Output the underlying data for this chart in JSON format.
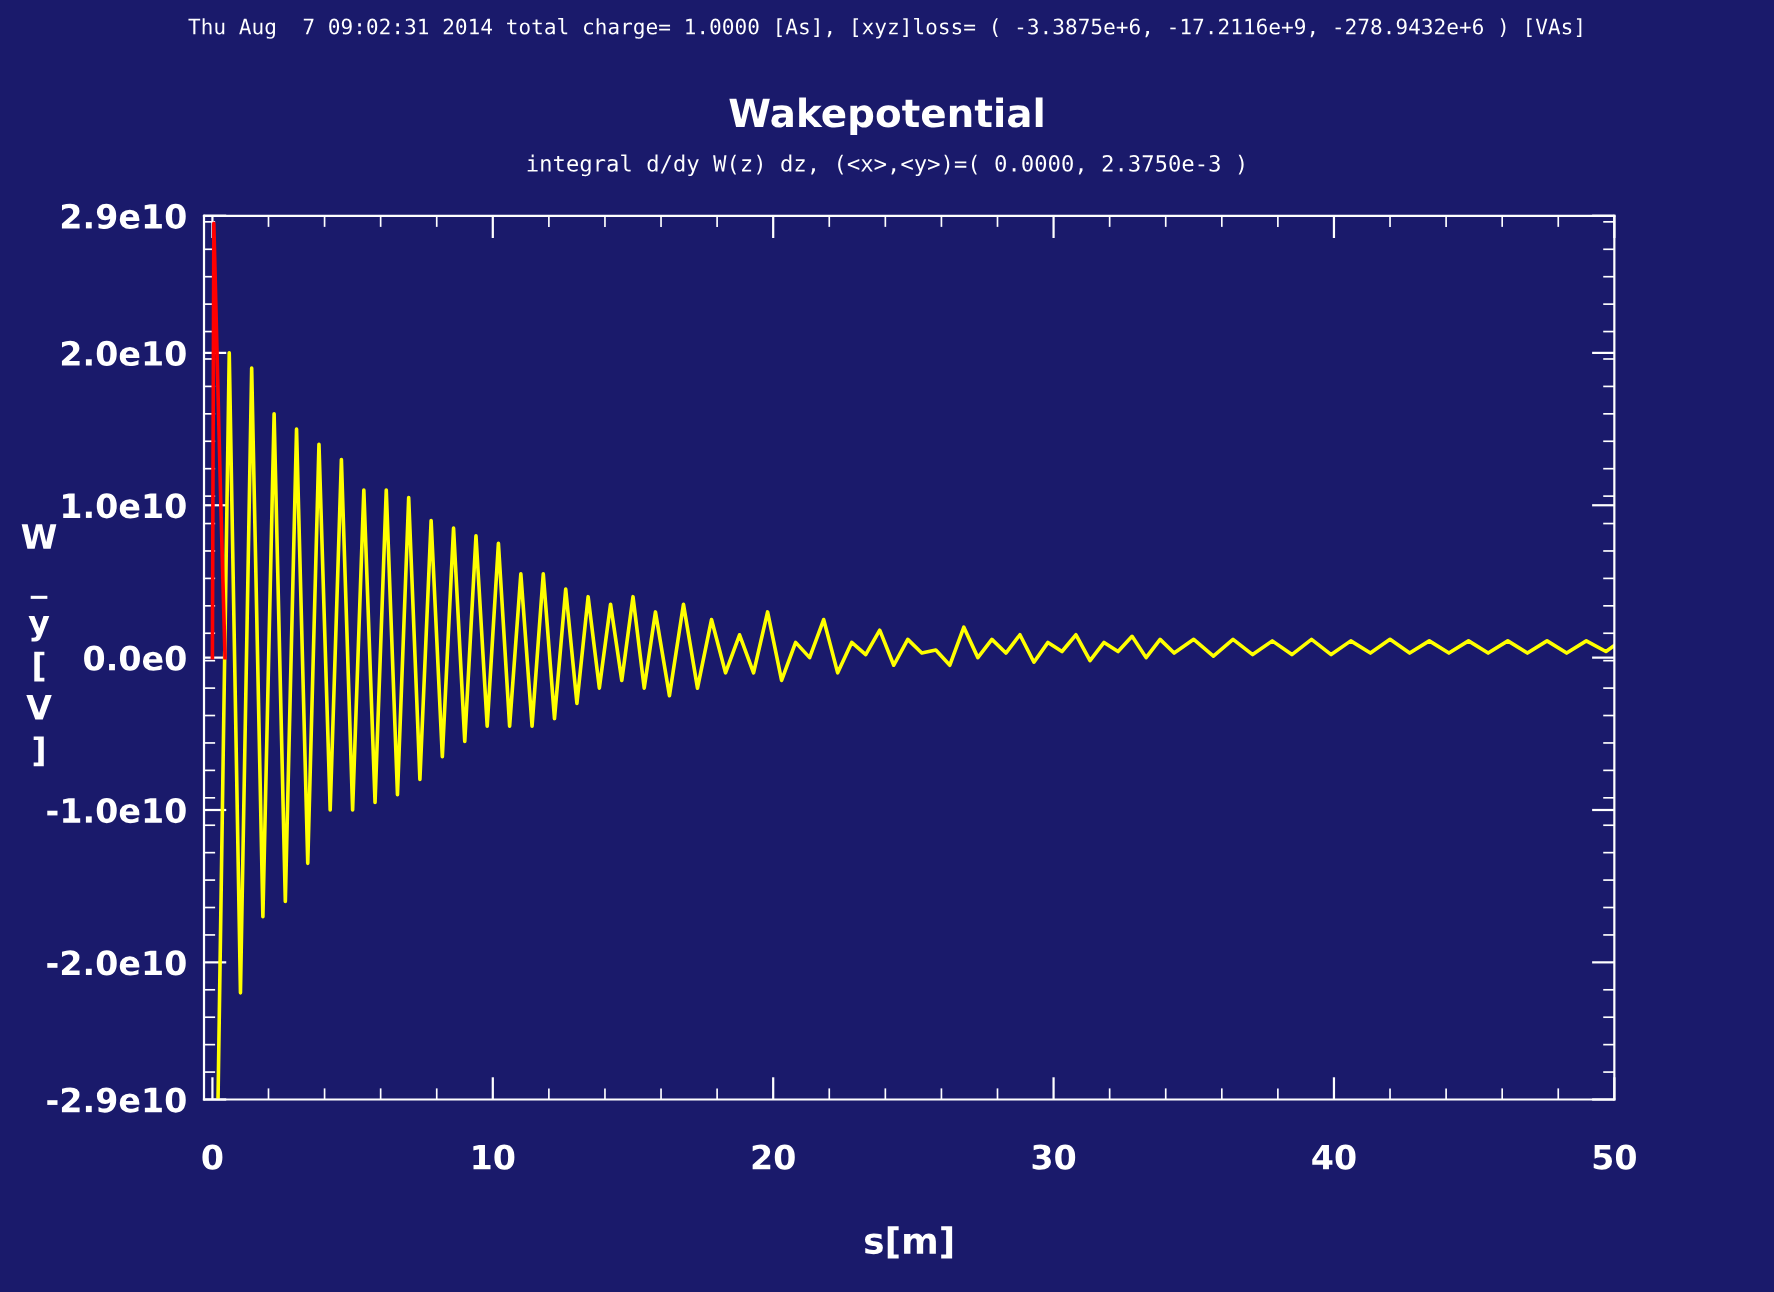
{
  "chart_data": {
    "type": "line",
    "title": "Wakepotential",
    "subtitle": "integral d/dy W(z) dz, (<x>,<y>)=( 0.0000, 2.3750e-3 )",
    "xlabel": "s[m]",
    "ylabel": "W_y[V]",
    "annotations": [
      "Thu Aug  7 09:02:31 2014 total charge= 1.0000 [As], [xyz]loss= ( -3.3875e+6, -17.2116e+9, -278.9432e+6 ) [VAs]"
    ],
    "xlim": [
      -0.3,
      50
    ],
    "xticks": [
      0,
      10,
      20,
      30,
      40,
      50
    ],
    "ylim": [
      -29000000000.0,
      29000000000.0
    ],
    "yticks": [
      {
        "value": -29000000000.0,
        "label": "-2.9e10"
      },
      {
        "value": -20000000000.0,
        "label": "-2.0e10"
      },
      {
        "value": -10000000000.0,
        "label": "-1.0e10"
      },
      {
        "value": 0,
        "label": "0.0e0"
      },
      {
        "value": 10000000000.0,
        "label": "1.0e10"
      },
      {
        "value": 20000000000.0,
        "label": "2.0e10"
      },
      {
        "value": 29000000000.0,
        "label": "2.9e10"
      }
    ],
    "grid": false,
    "legend": false,
    "series": [
      {
        "color": "#ffff00",
        "x": [
          0.2,
          0.6,
          1.0,
          1.4,
          1.8,
          2.2,
          2.6,
          3.0,
          3.4,
          3.8,
          4.2,
          4.6,
          5.0,
          5.4,
          5.8,
          6.2,
          6.6,
          7.0,
          7.4,
          7.8,
          8.2,
          8.6,
          9.0,
          9.4,
          9.8,
          10.2,
          10.6,
          11.0,
          11.4,
          11.8,
          12.2,
          12.6,
          13.0,
          13.4,
          13.8,
          14.2,
          14.6,
          15.0,
          15.4,
          15.8,
          16.3,
          16.8,
          17.3,
          17.8,
          18.3,
          18.8,
          19.3,
          19.8,
          20.3,
          20.8,
          21.3,
          21.8,
          22.3,
          22.8,
          23.3,
          23.8,
          24.3,
          24.8,
          25.3,
          25.8,
          26.3,
          26.8,
          27.3,
          27.8,
          28.3,
          28.8,
          29.3,
          29.8,
          30.3,
          30.8,
          31.3,
          31.8,
          32.3,
          32.8,
          33.3,
          33.8,
          34.3,
          35.0,
          35.7,
          36.4,
          37.1,
          37.8,
          38.5,
          39.2,
          39.9,
          40.6,
          41.3,
          42.0,
          42.7,
          43.4,
          44.1,
          44.8,
          45.5,
          46.2,
          46.9,
          47.6,
          48.3,
          49.0,
          49.7,
          50.0
        ],
        "values": [
          -29000000000.0,
          20000000000.0,
          -22000000000.0,
          19000000000.0,
          -17000000000.0,
          16000000000.0,
          -16000000000.0,
          15000000000.0,
          -13500000000.0,
          14000000000.0,
          -10000000000.0,
          13000000000.0,
          -10000000000.0,
          11000000000.0,
          -9500000000.0,
          11000000000.0,
          -9000000000.0,
          10500000000.0,
          -8000000000.0,
          9000000000.0,
          -6500000000.0,
          8500000000.0,
          -5500000000.0,
          8000000000.0,
          -4500000000.0,
          7500000000.0,
          -4500000000.0,
          5500000000.0,
          -4500000000.0,
          5500000000.0,
          -4000000000.0,
          4500000000.0,
          -3000000000.0,
          4000000000.0,
          -2000000000.0,
          3500000000.0,
          -1500000000.0,
          4000000000.0,
          -2000000000.0,
          3000000000.0,
          -2500000000.0,
          3500000000.0,
          -2000000000.0,
          2500000000.0,
          -1000000000.0,
          1500000000.0,
          -1000000000.0,
          3000000000.0,
          -1500000000.0,
          1000000000.0,
          0.0,
          2500000000.0,
          -1000000000.0,
          1000000000.0,
          200000000.0,
          1800000000.0,
          -500000000.0,
          1200000000.0,
          300000000.0,
          500000000.0,
          -500000000.0,
          2000000000.0,
          0.0,
          1200000000.0,
          300000000.0,
          1500000000.0,
          -300000000.0,
          1000000000.0,
          400000000.0,
          1500000000.0,
          -200000000.0,
          1000000000.0,
          400000000.0,
          1400000000.0,
          0.0,
          1200000000.0,
          300000000.0,
          1200000000.0,
          100000000.0,
          1200000000.0,
          200000000.0,
          1100000000.0,
          200000000.0,
          1200000000.0,
          200000000.0,
          1100000000.0,
          300000000.0,
          1200000000.0,
          300000000.0,
          1100000000.0,
          300000000.0,
          1100000000.0,
          300000000.0,
          1100000000.0,
          300000000.0,
          1100000000.0,
          300000000.0,
          1100000000.0,
          400000000.0,
          800000000.0
        ]
      },
      {
        "color": "#ff0000",
        "x": [
          0.0,
          0.05,
          0.3,
          0.45
        ],
        "values": [
          0.0,
          28500000000.0,
          10000000000.0,
          0.0
        ]
      }
    ]
  }
}
